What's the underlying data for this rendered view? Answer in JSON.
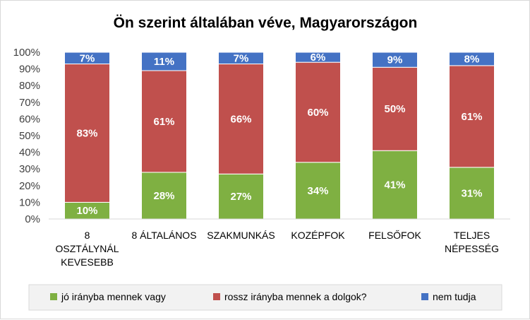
{
  "chart_data": {
    "type": "bar",
    "stacked": true,
    "title": "Ön szerint általában véve, Magyarországon",
    "categories": [
      [
        "8",
        "OSZTÁLYNÁL",
        "KEVESEBB"
      ],
      [
        "8 ÁLTALÁNOS"
      ],
      [
        "SZAKMUNKÁS"
      ],
      [
        "KOZÉPFOK"
      ],
      [
        "FELSŐFOK"
      ],
      [
        "TELJES",
        "NÉPESSÉG"
      ]
    ],
    "series": [
      {
        "name": "jó irányba mennek vagy",
        "color": "#7fb042",
        "values": [
          10,
          28,
          27,
          34,
          41,
          31
        ],
        "labels": [
          "10%",
          "28%",
          "27%",
          "34%",
          "41%",
          "31%"
        ]
      },
      {
        "name": "rossz irányba mennek a dolgok?",
        "color": "#c0504d",
        "values": [
          83,
          61,
          66,
          60,
          50,
          61
        ],
        "labels": [
          "83%",
          "61%",
          "66%",
          "60%",
          "50%",
          "61%"
        ]
      },
      {
        "name": "nem tudja",
        "color": "#4472c4",
        "values": [
          7,
          11,
          7,
          6,
          9,
          8
        ],
        "labels": [
          "7%",
          "11%",
          "7%",
          "6%",
          "9%",
          "8%"
        ]
      }
    ],
    "y_ticks": [
      "0%",
      "10%",
      "20%",
      "30%",
      "40%",
      "50%",
      "60%",
      "70%",
      "80%",
      "90%",
      "100%"
    ],
    "ylim": [
      0,
      100
    ],
    "grid": false,
    "legend_position": "bottom"
  }
}
